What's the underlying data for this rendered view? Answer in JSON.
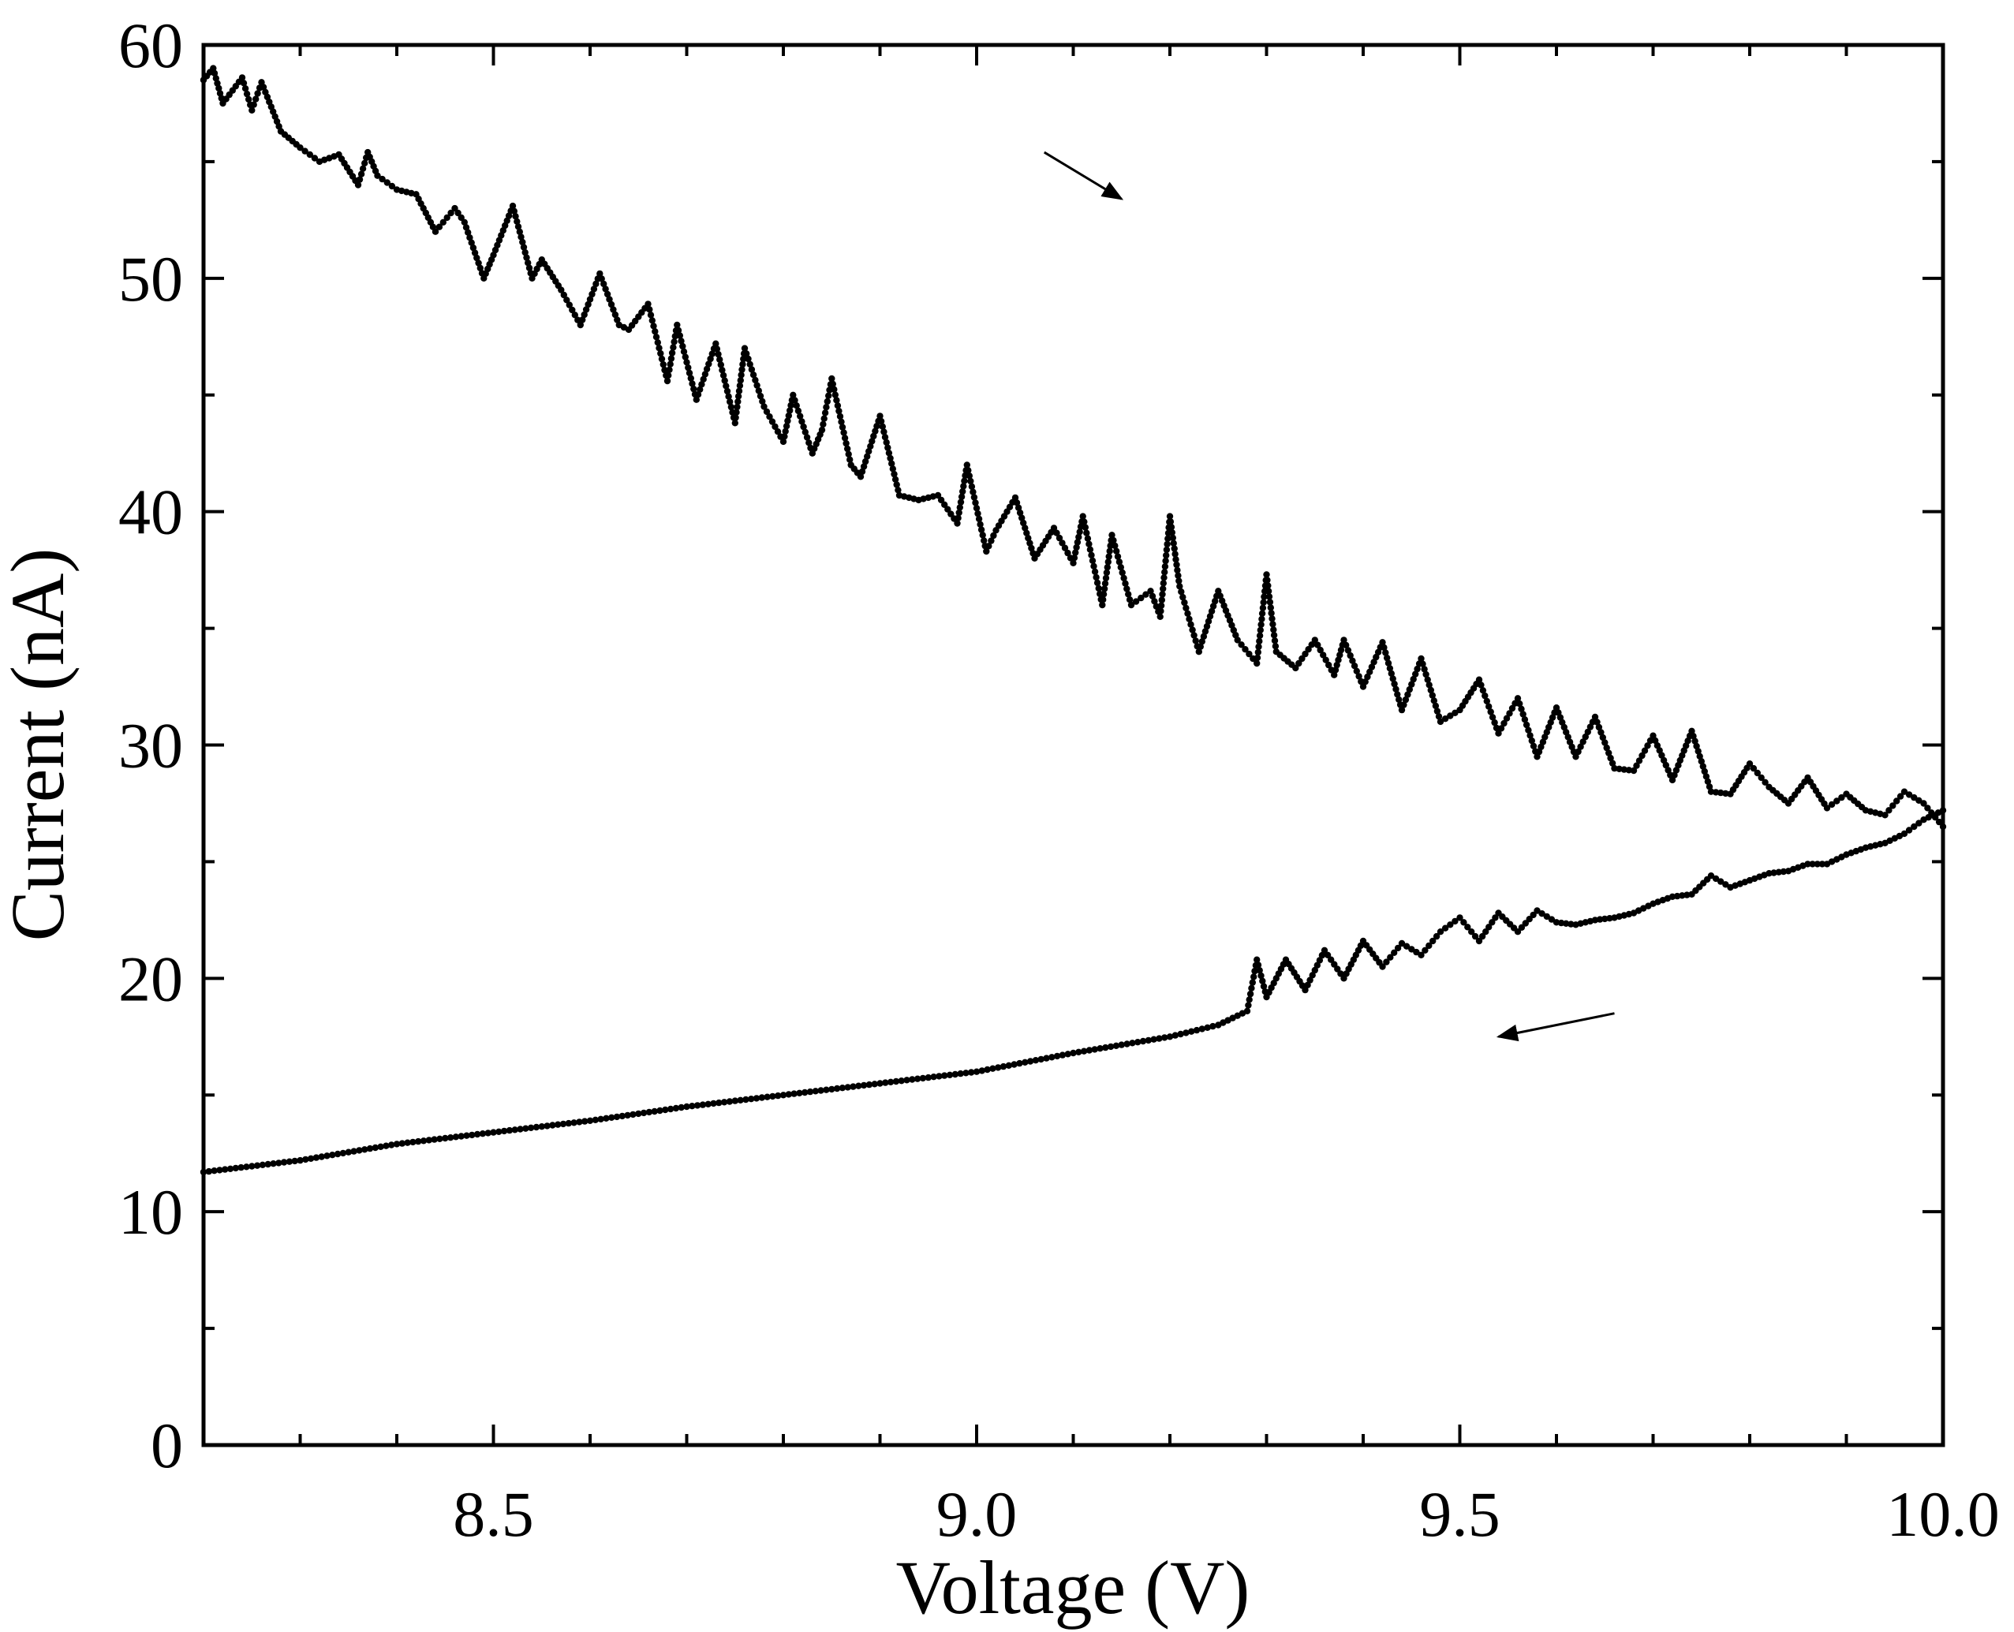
{
  "chart_data": {
    "type": "scatter",
    "title": "",
    "xlabel": "Voltage (V)",
    "ylabel": "Current (nA)",
    "xlim": [
      8.2,
      10.0
    ],
    "ylim": [
      0,
      60
    ],
    "x_ticks": [
      8.5,
      9.0,
      9.5,
      10.0
    ],
    "x_tick_labels": [
      "8.5",
      "9.0",
      "9.5",
      "10.0"
    ],
    "y_ticks": [
      0,
      10,
      20,
      30,
      40,
      50,
      60
    ],
    "y_tick_labels": [
      "0",
      "10",
      "20",
      "30",
      "40",
      "50",
      "60"
    ],
    "x_minor_step": 0.1,
    "y_minor_step": 5,
    "mirror_ticks": true,
    "grid": false,
    "legend": "none",
    "marker_color": "#000000",
    "series": [
      {
        "direction": "increasing voltage",
        "x": [
          8.2,
          8.21,
          8.22,
          8.24,
          8.25,
          8.26,
          8.28,
          8.3,
          8.32,
          8.34,
          8.36,
          8.37,
          8.38,
          8.4,
          8.42,
          8.44,
          8.46,
          8.47,
          8.49,
          8.5,
          8.52,
          8.54,
          8.55,
          8.57,
          8.59,
          8.61,
          8.63,
          8.64,
          8.66,
          8.68,
          8.69,
          8.71,
          8.73,
          8.75,
          8.76,
          8.78,
          8.8,
          8.81,
          8.83,
          8.84,
          8.85,
          8.87,
          8.88,
          8.9,
          8.92,
          8.94,
          8.96,
          8.98,
          8.99,
          9.01,
          9.02,
          9.04,
          9.06,
          9.08,
          9.1,
          9.11,
          9.13,
          9.14,
          9.16,
          9.18,
          9.19,
          9.2,
          9.21,
          9.23,
          9.25,
          9.27,
          9.29,
          9.3,
          9.31,
          9.33,
          9.35,
          9.37,
          9.38,
          9.4,
          9.42,
          9.44,
          9.46,
          9.48,
          9.5,
          9.52,
          9.54,
          9.56,
          9.58,
          9.6,
          9.62,
          9.64,
          9.66,
          9.68,
          9.7,
          9.72,
          9.74,
          9.76,
          9.78,
          9.8,
          9.82,
          9.84,
          9.86,
          9.88,
          9.9,
          9.92,
          9.94,
          9.96,
          9.98,
          10.0
        ],
        "y": [
          58.5,
          59.0,
          57.5,
          58.6,
          57.2,
          58.4,
          56.3,
          55.6,
          55.0,
          55.3,
          54.0,
          55.4,
          54.4,
          53.8,
          53.6,
          52.0,
          53.0,
          52.4,
          50.0,
          51.0,
          53.1,
          50.0,
          50.8,
          49.5,
          48.0,
          50.2,
          48.0,
          47.8,
          48.9,
          45.6,
          48.0,
          44.8,
          47.2,
          43.8,
          47.0,
          44.5,
          43.0,
          45.0,
          42.5,
          43.5,
          45.7,
          42.0,
          41.5,
          44.1,
          40.7,
          40.5,
          40.7,
          39.5,
          42.0,
          38.3,
          39.2,
          40.6,
          38.0,
          39.3,
          37.8,
          39.8,
          36.0,
          39.0,
          36.0,
          36.6,
          35.5,
          39.8,
          36.8,
          34.0,
          36.6,
          34.5,
          33.5,
          37.3,
          34.0,
          33.3,
          34.5,
          33.0,
          34.5,
          32.5,
          34.4,
          31.5,
          33.7,
          31.0,
          31.5,
          32.8,
          30.5,
          32.0,
          29.5,
          31.6,
          29.5,
          31.2,
          29.0,
          28.9,
          30.4,
          28.5,
          30.6,
          28.0,
          27.9,
          29.2,
          28.2,
          27.5,
          28.6,
          27.3,
          27.9,
          27.2,
          27.0,
          28.0,
          27.5,
          26.5
        ]
      },
      {
        "direction": "decreasing voltage",
        "x": [
          8.2,
          8.3,
          8.4,
          8.5,
          8.6,
          8.7,
          8.8,
          8.9,
          9.0,
          9.1,
          9.2,
          9.25,
          9.28,
          9.29,
          9.3,
          9.32,
          9.34,
          9.36,
          9.38,
          9.4,
          9.42,
          9.44,
          9.46,
          9.48,
          9.5,
          9.52,
          9.54,
          9.56,
          9.58,
          9.6,
          9.62,
          9.64,
          9.66,
          9.68,
          9.7,
          9.72,
          9.74,
          9.76,
          9.78,
          9.8,
          9.82,
          9.84,
          9.86,
          9.88,
          9.9,
          9.92,
          9.94,
          9.96,
          9.98,
          10.0
        ],
        "y": [
          11.7,
          12.2,
          12.9,
          13.4,
          13.9,
          14.5,
          15.0,
          15.5,
          16.0,
          16.8,
          17.5,
          18.0,
          18.6,
          20.8,
          19.2,
          20.8,
          19.5,
          21.2,
          20.0,
          21.6,
          20.5,
          21.5,
          21.0,
          22.0,
          22.6,
          21.6,
          22.8,
          22.0,
          22.9,
          22.4,
          22.3,
          22.5,
          22.6,
          22.8,
          23.2,
          23.5,
          23.6,
          24.4,
          23.9,
          24.2,
          24.5,
          24.6,
          24.9,
          24.9,
          25.3,
          25.6,
          25.8,
          26.2,
          26.8,
          27.2
        ]
      }
    ],
    "annotations": [
      {
        "type": "arrow",
        "meaning": "increasing voltage direction",
        "from": [
          9.07,
          55.4
        ],
        "to": [
          9.15,
          53.4
        ]
      },
      {
        "type": "arrow",
        "meaning": "decreasing voltage direction",
        "from": [
          9.66,
          18.5
        ],
        "to": [
          9.54,
          17.5
        ]
      }
    ]
  }
}
